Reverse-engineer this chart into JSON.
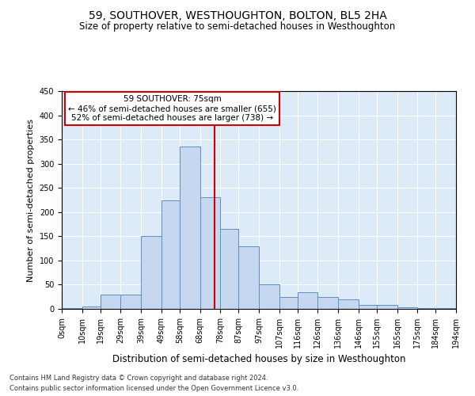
{
  "title": "59, SOUTHOVER, WESTHOUGHTON, BOLTON, BL5 2HA",
  "subtitle": "Size of property relative to semi-detached houses in Westhoughton",
  "xlabel": "Distribution of semi-detached houses by size in Westhoughton",
  "ylabel": "Number of semi-detached properties",
  "footnote1": "Contains HM Land Registry data © Crown copyright and database right 2024.",
  "footnote2": "Contains public sector information licensed under the Open Government Licence v3.0.",
  "annotation_title": "59 SOUTHOVER: 75sqm",
  "annotation_line1": "← 46% of semi-detached houses are smaller (655)",
  "annotation_line2": "52% of semi-detached houses are larger (738) →",
  "property_size": 75,
  "bin_edges": [
    0,
    10,
    19,
    29,
    39,
    49,
    58,
    68,
    78,
    87,
    97,
    107,
    116,
    126,
    136,
    146,
    155,
    165,
    175,
    184,
    194
  ],
  "bar_heights": [
    2,
    5,
    30,
    30,
    150,
    225,
    335,
    230,
    165,
    130,
    50,
    25,
    35,
    25,
    20,
    8,
    8,
    3,
    2,
    2
  ],
  "bar_color": "#c5d8f0",
  "bar_edge_color": "#5a8fc2",
  "background_color": "#ddeaf7",
  "grid_color": "#ffffff",
  "vline_color": "#cc0000",
  "annotation_box_color": "#ffffff",
  "annotation_box_edge": "#cc0000",
  "ylim": [
    0,
    450
  ],
  "yticks": [
    0,
    50,
    100,
    150,
    200,
    250,
    300,
    350,
    400,
    450
  ],
  "title_fontsize": 10,
  "subtitle_fontsize": 8.5,
  "ylabel_fontsize": 8,
  "xlabel_fontsize": 8.5,
  "tick_fontsize": 7,
  "annotation_fontsize": 7.5,
  "footnote_fontsize": 6
}
